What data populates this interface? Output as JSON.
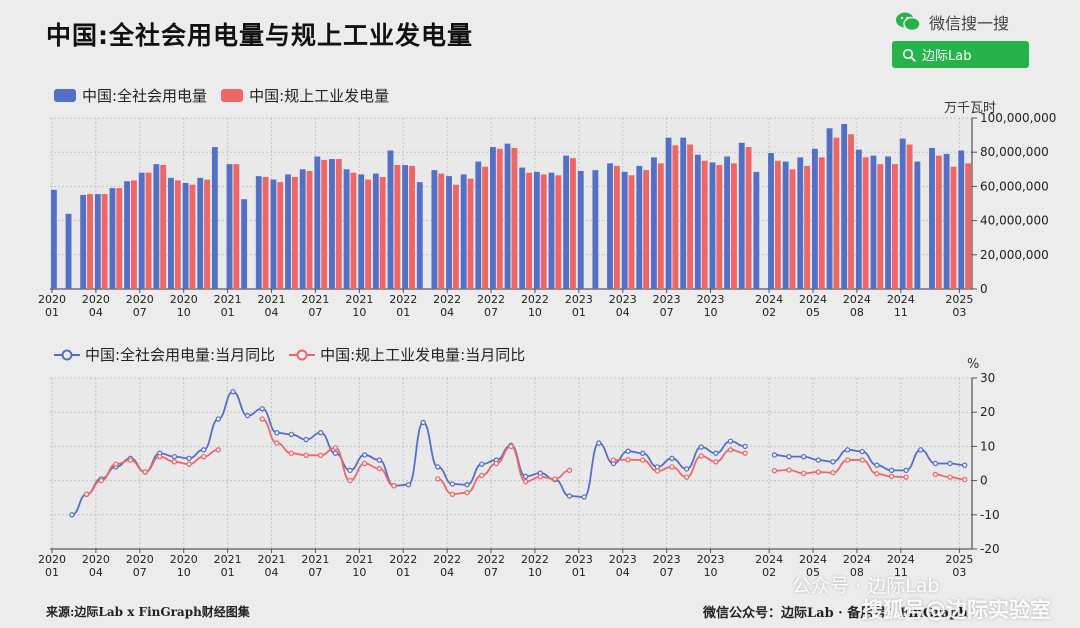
{
  "header": {
    "title": "中国:全社会用电量与规上工业发电量",
    "wechat_label": "微信搜一搜",
    "search_label": "边际Lab"
  },
  "footer": {
    "source": "来源:边际Lab x FinGraph财经图集",
    "account": "微信公众号：边际Lab · 备用号：FinGraph"
  },
  "watermarks": {
    "mid": "公众号 · 边际Lab",
    "corner": "搜狐号@边际实验室"
  },
  "colors": {
    "blue": "#5470c6",
    "red": "#ee6666"
  },
  "chart_data": [
    {
      "type": "bar",
      "unit": "万千瓦时",
      "ylim": [
        0,
        100000000
      ],
      "yticks": [
        "100,000,000",
        "80,000,000",
        "60,000,000",
        "40,000,000",
        "20,000,000",
        "0"
      ],
      "xticks": [
        {
          "year": "2020",
          "month": "01"
        },
        {
          "year": "2020",
          "month": "04"
        },
        {
          "year": "2020",
          "month": "07"
        },
        {
          "year": "2020",
          "month": "10"
        },
        {
          "year": "2021",
          "month": "01"
        },
        {
          "year": "2021",
          "month": "04"
        },
        {
          "year": "2021",
          "month": "07"
        },
        {
          "year": "2021",
          "month": "10"
        },
        {
          "year": "2022",
          "month": "01"
        },
        {
          "year": "2022",
          "month": "04"
        },
        {
          "year": "2022",
          "month": "07"
        },
        {
          "year": "2022",
          "month": "10"
        },
        {
          "year": "2023",
          "month": "01"
        },
        {
          "year": "2023",
          "month": "04"
        },
        {
          "year": "2023",
          "month": "07"
        },
        {
          "year": "2023",
          "month": "10"
        },
        {
          "year": "2024",
          "month": "02"
        },
        {
          "year": "2024",
          "month": "05"
        },
        {
          "year": "2024",
          "month": "08"
        },
        {
          "year": "2024",
          "month": "11"
        },
        {
          "year": "2025",
          "month": "03"
        }
      ],
      "xtick_index": [
        0,
        3,
        6,
        9,
        12,
        15,
        18,
        21,
        24,
        27,
        30,
        33,
        36,
        39,
        42,
        45,
        49,
        52,
        55,
        58,
        62
      ],
      "series": [
        {
          "name": "中国:全社会用电量",
          "color": "#5470c6",
          "values": [
            58000000,
            44000000,
            55000000,
            55500000,
            59000000,
            63000000,
            68000000,
            73000000,
            65000000,
            62000000,
            65000000,
            83000000,
            73000000,
            52500000,
            66000000,
            64000000,
            67000000,
            70000000,
            77500000,
            76000000,
            70000000,
            67000000,
            67500000,
            81000000,
            72500000,
            62500000,
            69500000,
            66000000,
            67000000,
            74500000,
            83000000,
            85000000,
            71000000,
            68500000,
            68000000,
            78000000,
            69000000,
            69500000,
            73500000,
            68500000,
            72000000,
            77000000,
            88500000,
            88500000,
            78500000,
            74000000,
            77500000,
            85500000,
            68500000,
            79500000,
            74500000,
            77000000,
            82000000,
            94000000,
            96500000,
            81500000,
            78000000,
            77500000,
            88000000,
            74500000,
            82500000,
            79000000,
            81000000
          ],
          "note": "monthly values Jan-2020 to Mar-2025"
        },
        {
          "name": "中国:规上工业发电量",
          "color": "#ee6666",
          "values": [
            null,
            null,
            55500000,
            55500000,
            59000000,
            63500000,
            68000000,
            72500000,
            63500000,
            61000000,
            64000000,
            null,
            73000000,
            null,
            65500000,
            62500000,
            65500000,
            69000000,
            75500000,
            76000000,
            68000000,
            64000000,
            65500000,
            72500000,
            72000000,
            null,
            67500000,
            61000000,
            64500000,
            71500000,
            82000000,
            82500000,
            68000000,
            67000000,
            66500000,
            76500000,
            null,
            null,
            72000000,
            66500000,
            69500000,
            73500000,
            84000000,
            84500000,
            75000000,
            72500000,
            73500000,
            83000000,
            null,
            75000000,
            70000000,
            72000000,
            77000000,
            88500000,
            90500000,
            77000000,
            73000000,
            73000000,
            84500000,
            null,
            78000000,
            71500000,
            73500000
          ]
        }
      ]
    },
    {
      "type": "line",
      "unit": "%",
      "ylim": [
        -20,
        30
      ],
      "yticks": [
        "30",
        "20",
        "10",
        "0",
        "-10",
        "-20"
      ],
      "series": [
        {
          "name": "中国:全社会用电量:当月同比",
          "color": "#5470c6",
          "values": [
            null,
            -10,
            -4,
            0.5,
            4,
            6.5,
            2.5,
            8,
            7,
            6.5,
            9,
            18,
            26,
            19,
            21,
            14,
            13.5,
            12,
            14,
            8,
            3,
            7.5,
            6,
            -1.5,
            -1.2,
            17,
            4,
            -1,
            -1.2,
            4.8,
            6,
            10.3,
            1.2,
            2.2,
            0.3,
            -4.5,
            -4.8,
            11,
            5,
            8.6,
            8,
            4,
            6.5,
            3.4,
            9.8,
            8,
            11.5,
            10,
            null,
            7.5,
            7,
            7,
            6,
            5.5,
            9,
            8.5,
            4.5,
            3,
            3,
            9,
            5,
            5,
            4.5
          ],
          "note": "monthly YoY Jan-2020 to Mar-2025"
        },
        {
          "name": "中国:规上工业发电量:当月同比",
          "color": "#ee6666",
          "values": [
            null,
            null,
            -4,
            0,
            4.8,
            6,
            2.5,
            7,
            5.5,
            4.8,
            7,
            9,
            null,
            null,
            18,
            11,
            8,
            7.4,
            7.4,
            9.6,
            0,
            5,
            3.5,
            -1.5,
            null,
            null,
            0.5,
            -4,
            -3.5,
            1.5,
            5,
            10,
            -0.3,
            1.1,
            0.5,
            3,
            null,
            null,
            6,
            6.1,
            6,
            2.8,
            4,
            1,
            7.2,
            5.5,
            9,
            8,
            null,
            2.9,
            3.1,
            2.1,
            2.5,
            2.3,
            6,
            6,
            2,
            1.2,
            1,
            null,
            1.8,
            1,
            0.3
          ]
        }
      ]
    }
  ]
}
